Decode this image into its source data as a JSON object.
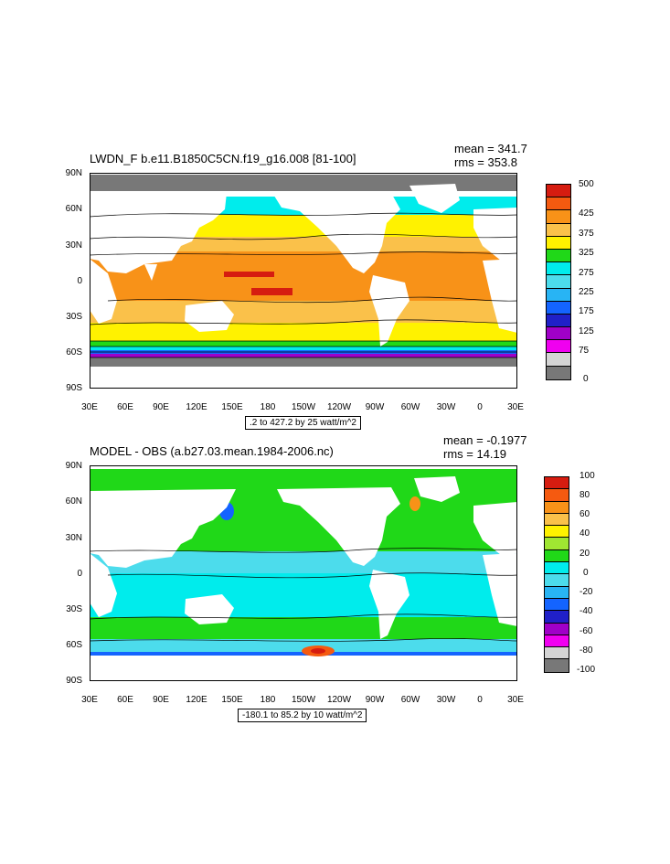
{
  "panels": [
    {
      "title": "LWDN_F b.e11.B1850C5CN.f19_g16.008 [81-100]",
      "mean": "mean = 341.7",
      "rms": "rms = 353.8",
      "range_text": ".2 to 427.2 by 25 watt/m^2",
      "lat_labels": [
        "90N",
        "60N",
        "30N",
        "0",
        "30S",
        "60S",
        "90S"
      ],
      "lon_labels": [
        "30E",
        "60E",
        "90E",
        "120E",
        "150E",
        "180",
        "150W",
        "120W",
        "90W",
        "60W",
        "30W",
        "0",
        "30E"
      ],
      "colorbar_labels": [
        "500",
        "425",
        "375",
        "325",
        "275",
        "225",
        "175",
        "125",
        "75",
        "0"
      ],
      "colorbar_colors": [
        "#d61c10",
        "#f55a10",
        "#f89218",
        "#fac14a",
        "#fff200",
        "#20d818",
        "#00ecec",
        "#4cdcec",
        "#28b4f4",
        "#1464ff",
        "#2020c8",
        "#a000c8",
        "#f000f0",
        "#d4d4d4",
        "#787878"
      ]
    },
    {
      "title": "MODEL - OBS (a.b27.03.mean.1984-2006.nc)",
      "mean": "mean = -0.1977",
      "rms": "rms = 14.19",
      "range_text": "-180.1 to 85.2 by 10 watt/m^2",
      "lat_labels": [
        "90N",
        "60N",
        "30N",
        "0",
        "30S",
        "60S",
        "90S"
      ],
      "lon_labels": [
        "30E",
        "60E",
        "90E",
        "120E",
        "150E",
        "180",
        "150W",
        "120W",
        "90W",
        "60W",
        "30W",
        "0",
        "30E"
      ],
      "colorbar_labels": [
        "100",
        "80",
        "60",
        "40",
        "20",
        "0",
        "-20",
        "-40",
        "-60",
        "-80",
        "-100"
      ],
      "colorbar_colors": [
        "#d61c10",
        "#f55a10",
        "#f89218",
        "#fac14a",
        "#fff200",
        "#a0e632",
        "#20d818",
        "#00ecec",
        "#4cdcec",
        "#28b4f4",
        "#1464ff",
        "#2020c8",
        "#a000c8",
        "#f000f0",
        "#d4d4d4",
        "#787878"
      ]
    }
  ]
}
